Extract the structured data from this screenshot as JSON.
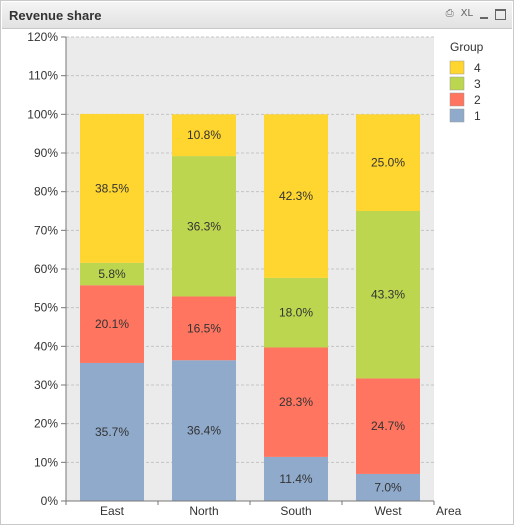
{
  "window": {
    "title": "Revenue share",
    "icons": [
      "print-icon",
      "xl-export-icon",
      "minimize-icon",
      "maximize-icon"
    ],
    "xl_label": "XL"
  },
  "chart_data": {
    "type": "bar",
    "stacked": true,
    "categories": [
      "East",
      "North",
      "South",
      "West"
    ],
    "xlabel": "Area",
    "ylim": [
      0,
      120
    ],
    "yticks": [
      "0%",
      "10%",
      "20%",
      "30%",
      "40%",
      "50%",
      "60%",
      "70%",
      "80%",
      "90%",
      "100%",
      "110%",
      "120%"
    ],
    "grid": true,
    "legend": {
      "title": "Group",
      "placement": "right"
    },
    "series": [
      {
        "name": "1",
        "color": "#8faacb",
        "values": [
          35.7,
          36.4,
          11.4,
          7.0
        ],
        "labels": [
          "35.7%",
          "36.4%",
          "11.4%",
          "7.0%"
        ]
      },
      {
        "name": "2",
        "color": "#ff7560",
        "values": [
          20.1,
          16.5,
          28.3,
          24.7
        ],
        "labels": [
          "20.1%",
          "16.5%",
          "28.3%",
          "24.7%"
        ]
      },
      {
        "name": "3",
        "color": "#bcd74f",
        "values": [
          5.8,
          36.3,
          18.0,
          43.3
        ],
        "labels": [
          "5.8%",
          "36.3%",
          "18.0%",
          "43.3%"
        ]
      },
      {
        "name": "4",
        "color": "#ffd630",
        "values": [
          38.5,
          10.8,
          42.3,
          25.0
        ],
        "labels": [
          "38.5%",
          "10.8%",
          "42.3%",
          "25.0%"
        ]
      }
    ]
  }
}
